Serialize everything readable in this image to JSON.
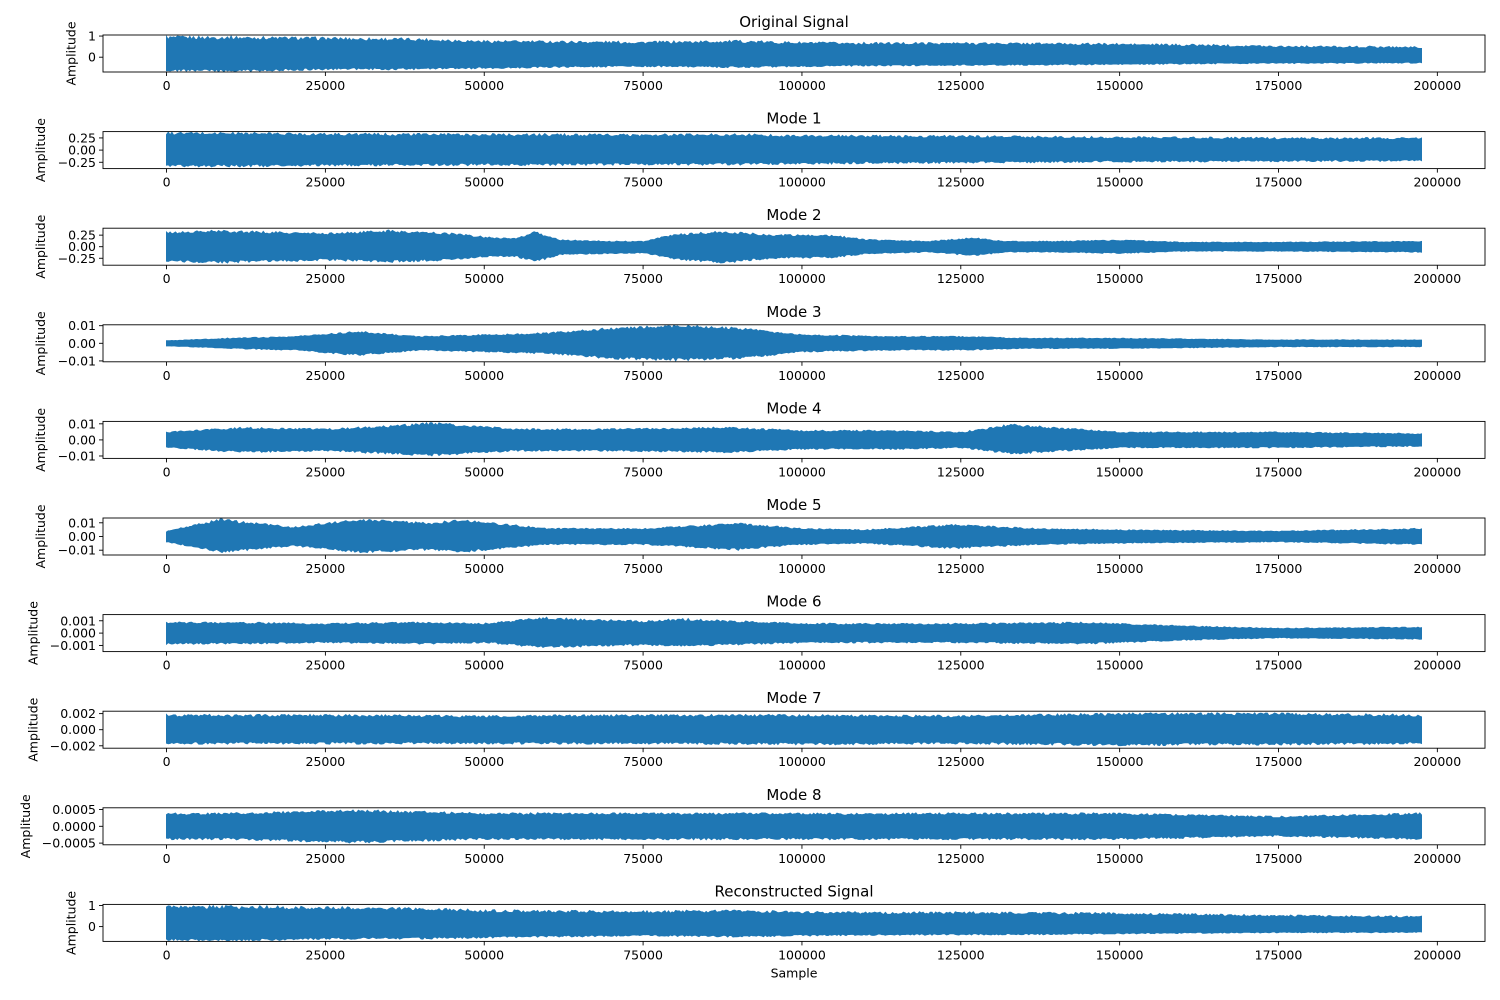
{
  "colors": {
    "line": "#1f77b4",
    "axes": "#000000",
    "background": "#ffffff"
  },
  "chart_data": [
    {
      "type": "line",
      "title": "Original Signal",
      "ylabel": "Amplitude",
      "xlabel": "",
      "xlim": [
        -10000,
        207500
      ],
      "ylim": [
        -0.7,
        1.05
      ],
      "xticks": [
        0,
        25000,
        50000,
        75000,
        100000,
        125000,
        150000,
        175000,
        200000
      ],
      "yticks": [
        0,
        1
      ],
      "ytick_labels": [
        "0",
        "1"
      ],
      "grid": false,
      "series": [
        {
          "x": [
            0,
            10000,
            25000,
            40000,
            50000,
            60000,
            75000,
            90000,
            100000,
            110000,
            125000,
            140000,
            150000,
            165000,
            175000,
            197500
          ],
          "y_max": [
            1.0,
            1.0,
            0.95,
            0.9,
            0.8,
            0.78,
            0.75,
            0.8,
            0.72,
            0.7,
            0.7,
            0.68,
            0.65,
            0.6,
            0.55,
            0.5
          ],
          "y_min": [
            -0.65,
            -0.7,
            -0.6,
            -0.6,
            -0.55,
            -0.5,
            -0.45,
            -0.5,
            -0.45,
            -0.42,
            -0.4,
            -0.38,
            -0.35,
            -0.32,
            -0.3,
            -0.28
          ]
        }
      ]
    },
    {
      "type": "line",
      "title": "Mode 1",
      "ylabel": "Amplitude",
      "xlabel": "",
      "xlim": [
        -10000,
        207500
      ],
      "ylim": [
        -0.38,
        0.38
      ],
      "xticks": [
        0,
        25000,
        50000,
        75000,
        100000,
        125000,
        150000,
        175000,
        200000
      ],
      "yticks": [
        -0.25,
        0,
        0.25
      ],
      "ytick_labels": [
        "−0.25",
        "0.00",
        "0.25"
      ],
      "grid": false,
      "series": [
        {
          "x": [
            0,
            10000,
            25000,
            50000,
            75000,
            90000,
            100000,
            125000,
            150000,
            175000,
            197500
          ],
          "y_max": [
            0.37,
            0.37,
            0.35,
            0.34,
            0.33,
            0.34,
            0.31,
            0.3,
            0.28,
            0.26,
            0.26
          ],
          "y_min": [
            -0.34,
            -0.35,
            -0.33,
            -0.32,
            -0.31,
            -0.31,
            -0.29,
            -0.27,
            -0.25,
            -0.24,
            -0.23
          ]
        }
      ]
    },
    {
      "type": "line",
      "title": "Mode 2",
      "ylabel": "Amplitude",
      "xlabel": "",
      "xlim": [
        -10000,
        207500
      ],
      "ylim": [
        -0.4,
        0.4
      ],
      "xticks": [
        0,
        25000,
        50000,
        75000,
        100000,
        125000,
        150000,
        175000,
        200000
      ],
      "yticks": [
        -0.25,
        0,
        0.25
      ],
      "ytick_labels": [
        "−0.25",
        "0.00",
        "0.25"
      ],
      "grid": false,
      "series": [
        {
          "x": [
            0,
            8000,
            25000,
            35000,
            45000,
            50000,
            55000,
            58000,
            62000,
            70000,
            75000,
            80000,
            88000,
            95000,
            105000,
            110000,
            120000,
            127000,
            132000,
            140000,
            150000,
            160000,
            175000,
            197500
          ],
          "y_max": [
            0.32,
            0.36,
            0.3,
            0.36,
            0.3,
            0.22,
            0.18,
            0.33,
            0.15,
            0.12,
            0.12,
            0.28,
            0.34,
            0.27,
            0.25,
            0.16,
            0.12,
            0.2,
            0.12,
            0.12,
            0.15,
            0.1,
            0.1,
            0.12
          ],
          "y_min": [
            -0.32,
            -0.36,
            -0.3,
            -0.34,
            -0.3,
            -0.22,
            -0.22,
            -0.34,
            -0.18,
            -0.15,
            -0.14,
            -0.28,
            -0.36,
            -0.26,
            -0.24,
            -0.16,
            -0.12,
            -0.2,
            -0.12,
            -0.12,
            -0.15,
            -0.1,
            -0.1,
            -0.12
          ]
        }
      ]
    },
    {
      "type": "line",
      "title": "Mode 3",
      "ylabel": "Amplitude",
      "xlabel": "",
      "xlim": [
        -10000,
        207500
      ],
      "ylim": [
        -0.0105,
        0.0105
      ],
      "xticks": [
        0,
        25000,
        50000,
        75000,
        100000,
        125000,
        150000,
        175000,
        200000
      ],
      "yticks": [
        -0.01,
        0,
        0.01
      ],
      "ytick_labels": [
        "−0.01",
        "0.00",
        "0.01"
      ],
      "grid": false,
      "series": [
        {
          "x": [
            0,
            10000,
            20000,
            30000,
            40000,
            50000,
            60000,
            70000,
            81000,
            90000,
            100000,
            115000,
            125000,
            135000,
            150000,
            175000,
            197500
          ],
          "y_max": [
            0.0015,
            0.003,
            0.004,
            0.007,
            0.004,
            0.005,
            0.006,
            0.009,
            0.0105,
            0.009,
            0.005,
            0.004,
            0.004,
            0.003,
            0.003,
            0.002,
            0.002
          ],
          "y_min": [
            -0.0015,
            -0.003,
            -0.004,
            -0.007,
            -0.004,
            -0.005,
            -0.006,
            -0.009,
            -0.01,
            -0.009,
            -0.005,
            -0.004,
            -0.004,
            -0.003,
            -0.003,
            -0.002,
            -0.002
          ]
        }
      ]
    },
    {
      "type": "line",
      "title": "Mode 4",
      "ylabel": "Amplitude",
      "xlabel": "",
      "xlim": [
        -10000,
        207500
      ],
      "ylim": [
        -0.0115,
        0.0115
      ],
      "xticks": [
        0,
        25000,
        50000,
        75000,
        100000,
        125000,
        150000,
        175000,
        200000
      ],
      "yticks": [
        -0.01,
        0,
        0.01
      ],
      "ytick_labels": [
        "−0.01",
        "0.00",
        "0.01"
      ],
      "grid": false,
      "series": [
        {
          "x": [
            0,
            12000,
            25000,
            35000,
            42000,
            55000,
            70000,
            88000,
            100000,
            115000,
            125000,
            133000,
            150000,
            175000,
            197500
          ],
          "y_max": [
            0.005,
            0.008,
            0.007,
            0.009,
            0.011,
            0.007,
            0.007,
            0.008,
            0.006,
            0.006,
            0.005,
            0.01,
            0.005,
            0.005,
            0.004
          ],
          "y_min": [
            -0.005,
            -0.008,
            -0.007,
            -0.009,
            -0.01,
            -0.007,
            -0.007,
            -0.008,
            -0.006,
            -0.006,
            -0.005,
            -0.009,
            -0.005,
            -0.005,
            -0.004
          ]
        }
      ]
    },
    {
      "type": "line",
      "title": "Mode 5",
      "ylabel": "Amplitude",
      "xlabel": "",
      "xlim": [
        -10000,
        207500
      ],
      "ylim": [
        -0.0135,
        0.0135
      ],
      "xticks": [
        0,
        25000,
        50000,
        75000,
        100000,
        125000,
        150000,
        175000,
        200000
      ],
      "yticks": [
        -0.01,
        0,
        0.01
      ],
      "ytick_labels": [
        "−0.01",
        "0.00",
        "0.01"
      ],
      "grid": false,
      "series": [
        {
          "x": [
            0,
            8500,
            20000,
            30000,
            42000,
            46000,
            60000,
            75000,
            90000,
            100000,
            110000,
            124000,
            137000,
            150000,
            175000,
            197500
          ],
          "y_max": [
            0.004,
            0.013,
            0.007,
            0.013,
            0.01,
            0.013,
            0.006,
            0.006,
            0.01,
            0.006,
            0.005,
            0.009,
            0.006,
            0.005,
            0.004,
            0.006
          ],
          "y_min": [
            -0.004,
            -0.012,
            -0.007,
            -0.012,
            -0.01,
            -0.012,
            -0.006,
            -0.006,
            -0.01,
            -0.006,
            -0.005,
            -0.009,
            -0.006,
            -0.005,
            -0.004,
            -0.006
          ]
        }
      ]
    },
    {
      "type": "line",
      "title": "Mode 6",
      "ylabel": "Amplitude",
      "xlabel": "",
      "xlim": [
        -10000,
        207500
      ],
      "ylim": [
        -0.0015,
        0.0015
      ],
      "xticks": [
        0,
        25000,
        50000,
        75000,
        100000,
        125000,
        150000,
        175000,
        200000
      ],
      "yticks": [
        -0.001,
        0,
        0.001
      ],
      "ytick_labels": [
        "−0.001",
        "0.000",
        "0.001"
      ],
      "grid": false,
      "series": [
        {
          "x": [
            0,
            10000,
            25000,
            40000,
            50000,
            59000,
            75000,
            81000,
            100000,
            125000,
            145000,
            160000,
            175000,
            197500
          ],
          "y_max": [
            0.0009,
            0.0009,
            0.0008,
            0.0009,
            0.0008,
            0.0013,
            0.001,
            0.0012,
            0.0008,
            0.0008,
            0.0009,
            0.0006,
            0.0004,
            0.0005
          ],
          "y_min": [
            -0.0009,
            -0.0009,
            -0.0008,
            -0.0009,
            -0.0008,
            -0.0012,
            -0.001,
            -0.0011,
            -0.0008,
            -0.0008,
            -0.0009,
            -0.0006,
            -0.0004,
            -0.0005
          ]
        }
      ]
    },
    {
      "type": "line",
      "title": "Mode 7",
      "ylabel": "Amplitude",
      "xlabel": "",
      "xlim": [
        -10000,
        207500
      ],
      "ylim": [
        -0.0023,
        0.0023
      ],
      "xticks": [
        0,
        25000,
        50000,
        75000,
        100000,
        125000,
        150000,
        175000,
        200000
      ],
      "yticks": [
        -0.002,
        0,
        0.002
      ],
      "ytick_labels": [
        "−0.002",
        "0.000",
        "0.002"
      ],
      "grid": false,
      "series": [
        {
          "x": [
            0,
            25000,
            50000,
            75000,
            100000,
            125000,
            150000,
            175000,
            197500
          ],
          "y_max": [
            0.0019,
            0.0019,
            0.0018,
            0.0019,
            0.0019,
            0.0018,
            0.0021,
            0.0021,
            0.0019
          ],
          "y_min": [
            -0.0018,
            -0.0018,
            -0.0018,
            -0.0018,
            -0.0019,
            -0.0018,
            -0.002,
            -0.0019,
            -0.0018
          ]
        }
      ]
    },
    {
      "type": "line",
      "title": "Mode 8",
      "ylabel": "Amplitude",
      "xlabel": "",
      "xlim": [
        -10000,
        207500
      ],
      "ylim": [
        -0.00055,
        0.00055
      ],
      "xticks": [
        0,
        25000,
        50000,
        75000,
        100000,
        125000,
        150000,
        175000,
        200000
      ],
      "yticks": [
        -0.0005,
        0,
        0.0005
      ],
      "ytick_labels": [
        "−0.0005",
        "0.0000",
        "0.0005"
      ],
      "grid": false,
      "series": [
        {
          "x": [
            0,
            10000,
            30000,
            50000,
            70000,
            90000,
            110000,
            130000,
            150000,
            175000,
            197500
          ],
          "y_max": [
            0.0004,
            0.0004,
            0.0005,
            0.0004,
            0.0004,
            0.0004,
            0.0004,
            0.0004,
            0.0004,
            0.0003,
            0.0004
          ],
          "y_min": [
            -0.0004,
            -0.0004,
            -0.0005,
            -0.0004,
            -0.0004,
            -0.0004,
            -0.0004,
            -0.0004,
            -0.0004,
            -0.0003,
            -0.0004
          ]
        }
      ]
    },
    {
      "type": "line",
      "title": "Reconstructed Signal",
      "ylabel": "Amplitude",
      "xlabel": "Sample",
      "xlim": [
        -10000,
        207500
      ],
      "ylim": [
        -0.7,
        1.05
      ],
      "xticks": [
        0,
        25000,
        50000,
        75000,
        100000,
        125000,
        150000,
        175000,
        200000
      ],
      "yticks": [
        0,
        1
      ],
      "ytick_labels": [
        "0",
        "1"
      ],
      "grid": false,
      "series": [
        {
          "x": [
            0,
            10000,
            25000,
            40000,
            50000,
            60000,
            75000,
            90000,
            100000,
            110000,
            125000,
            140000,
            150000,
            165000,
            175000,
            197500
          ],
          "y_max": [
            1.0,
            1.0,
            0.95,
            0.9,
            0.8,
            0.78,
            0.75,
            0.8,
            0.72,
            0.7,
            0.7,
            0.68,
            0.65,
            0.6,
            0.55,
            0.5
          ],
          "y_min": [
            -0.65,
            -0.7,
            -0.6,
            -0.6,
            -0.55,
            -0.5,
            -0.45,
            -0.5,
            -0.45,
            -0.42,
            -0.4,
            -0.38,
            -0.35,
            -0.32,
            -0.3,
            -0.28
          ]
        }
      ]
    }
  ]
}
